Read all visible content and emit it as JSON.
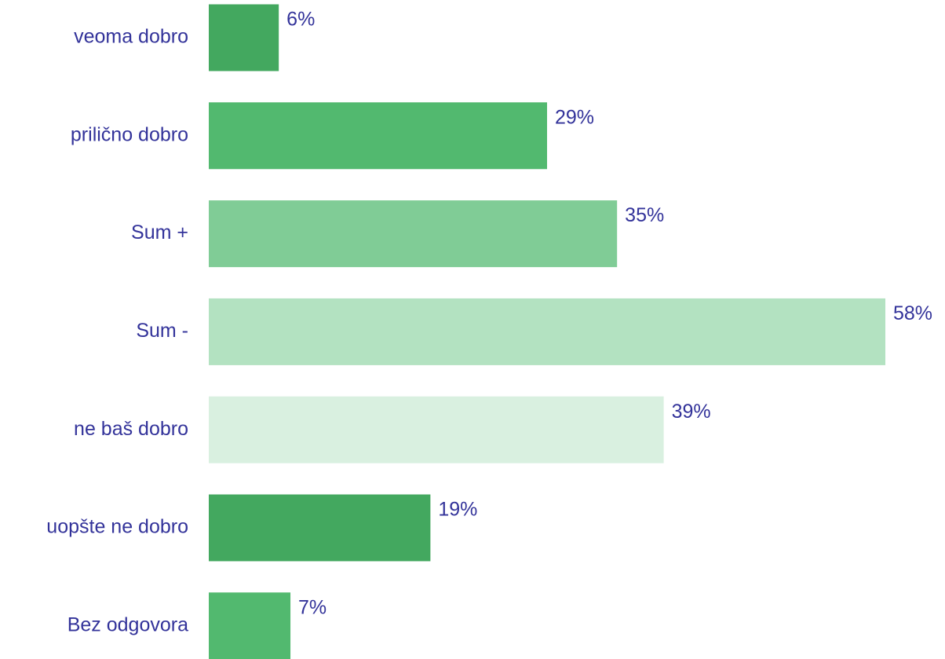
{
  "chart_data": {
    "type": "bar",
    "orientation": "horizontal",
    "categories": [
      "veoma dobro",
      "prilično dobro",
      "Sum +",
      "Sum -",
      "ne baš dobro",
      "uopšte ne dobro",
      "Bez odgovora"
    ],
    "values": [
      6,
      29,
      35,
      58,
      39,
      19,
      7
    ],
    "value_labels": [
      "6%",
      "29%",
      "35%",
      "58%",
      "39%",
      "19%",
      "7%"
    ],
    "colors": [
      "#43a85f",
      "#52b96f",
      "#80cc96",
      "#b3e2c1",
      "#d9f0e0",
      "#43a85f",
      "#52b96f"
    ]
  }
}
